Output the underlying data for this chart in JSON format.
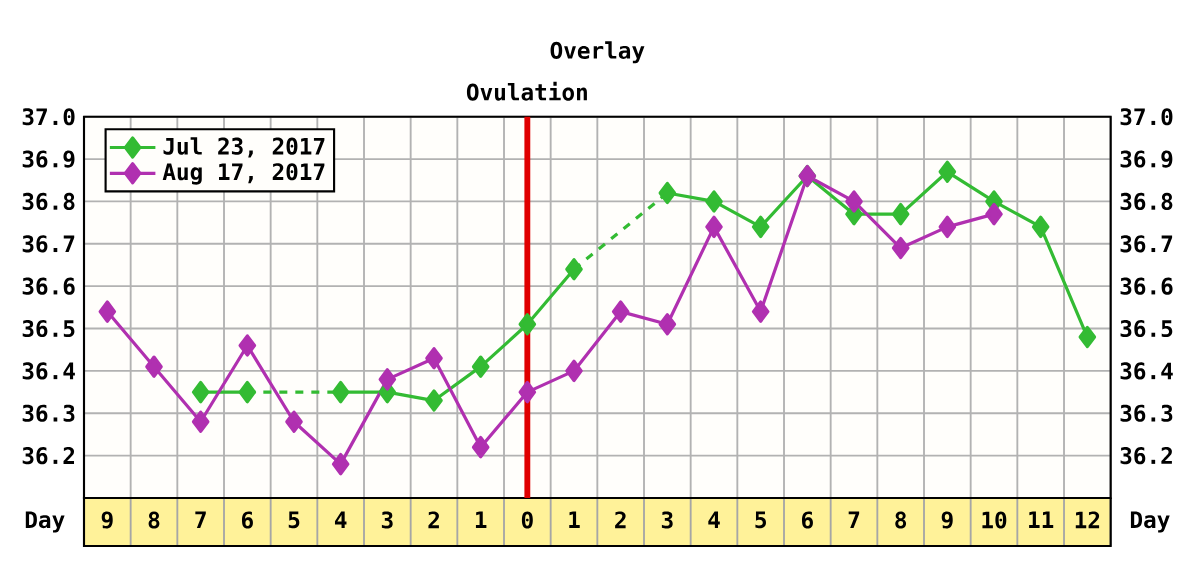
{
  "chart_data": {
    "type": "line",
    "title": "Overlay",
    "xlabel": "Day",
    "categories": [
      "9",
      "8",
      "7",
      "6",
      "5",
      "4",
      "3",
      "2",
      "1",
      "0",
      "1",
      "2",
      "3",
      "4",
      "5",
      "6",
      "7",
      "8",
      "9",
      "10",
      "11",
      "12"
    ],
    "series": [
      {
        "name": "Jul 23, 2017",
        "color": "#33bb33",
        "values": [
          null,
          null,
          36.35,
          36.35,
          null,
          36.35,
          36.35,
          36.33,
          36.41,
          36.51,
          36.64,
          null,
          36.82,
          36.8,
          36.74,
          36.86,
          36.77,
          36.77,
          36.87,
          36.8,
          36.74,
          36.48
        ]
      },
      {
        "name": "Aug 17, 2017",
        "color": "#b030b0",
        "values": [
          36.54,
          36.41,
          36.28,
          36.46,
          36.28,
          36.18,
          36.38,
          36.43,
          36.22,
          36.35,
          36.4,
          36.54,
          36.51,
          36.74,
          36.54,
          36.86,
          36.8,
          36.69,
          36.74,
          36.77,
          null,
          null
        ]
      }
    ],
    "ylim": [
      36.1,
      37.0
    ],
    "yticks": [
      36.2,
      36.3,
      36.4,
      36.5,
      36.6,
      36.7,
      36.8,
      36.9,
      {
        "value": 37.0,
        "label": "37.0"
      }
    ],
    "y2lim": [
      36.1,
      37.0
    ],
    "y2ticks": [
      36.2,
      36.3,
      36.4,
      36.5,
      36.6,
      36.7,
      36.8,
      36.9,
      {
        "value": 37.0,
        "label": "37.0"
      }
    ],
    "ref_lines": [
      {
        "axis": "x",
        "value": "0",
        "label": "Ovulation",
        "color": "#e00000"
      }
    ],
    "annotations": [
      "Day"
    ],
    "grid": true,
    "legend": "top left",
    "marker": "diamond",
    "line_style": "solid"
  }
}
